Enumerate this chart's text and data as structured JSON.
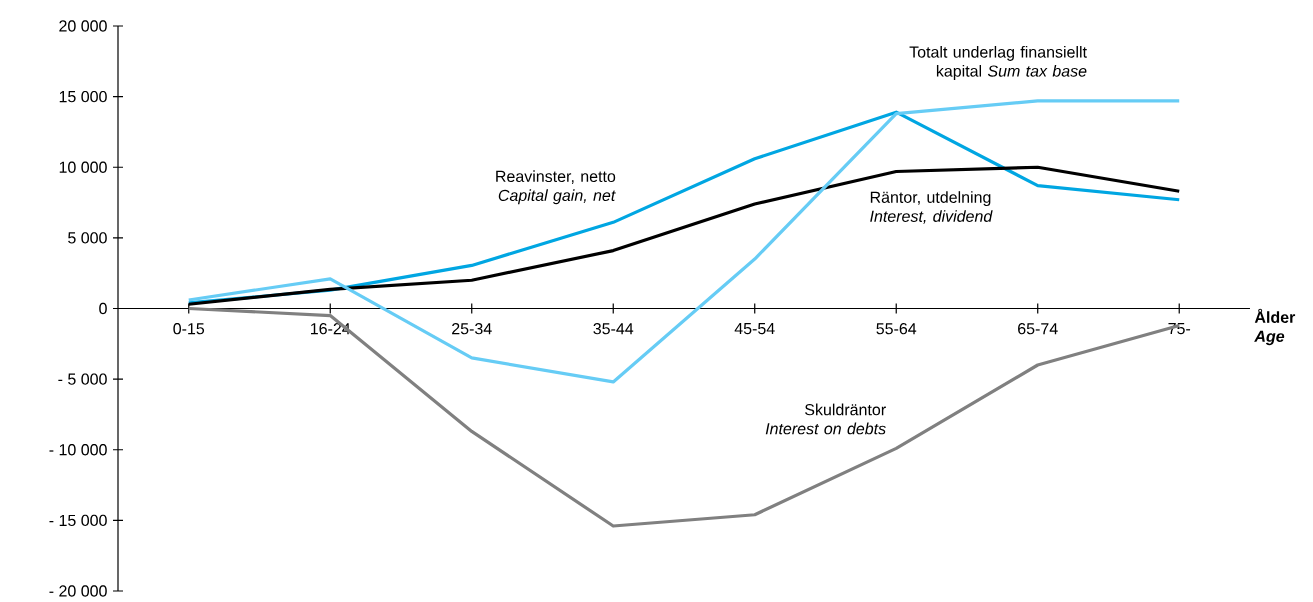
{
  "chart_data": {
    "type": "line",
    "xlabel": "Ålder *Age*",
    "categories": [
      "0-15",
      "16-24",
      "25-34",
      "35-44",
      "45-54",
      "55-64",
      "65-74",
      "75-"
    ],
    "series": [
      {
        "name": "Reavinster, netto *Capital gain, net*",
        "color": "#00a6e2",
        "values": [
          400,
          1300,
          3050,
          6100,
          10600,
          13900,
          8700,
          7700
        ]
      },
      {
        "name": "Räntor, utdelning *Interest, dividend*",
        "color": "#000000",
        "values": [
          300,
          1350,
          2000,
          4100,
          7400,
          9700,
          10000,
          8300
        ]
      },
      {
        "name": "Skuldräntor *Interest on debts*",
        "color": "#808080",
        "values": [
          0,
          -500,
          -8700,
          -15400,
          -14600,
          -9900,
          -4000,
          -1200
        ]
      },
      {
        "name": "Totalt underlag finansiellt kapital *Sum tax base*",
        "color": "#66ccf5",
        "values": [
          600,
          2100,
          -3500,
          -5200,
          3500,
          13800,
          14700,
          14700
        ]
      }
    ],
    "ylim": [
      -20000,
      20000
    ],
    "yticks": [
      {
        "value": -20000,
        "label": "- 20 000"
      },
      {
        "value": -15000,
        "label": "- 15 000"
      },
      {
        "value": -10000,
        "label": "- 10 000"
      },
      {
        "value": -5000,
        "label": "- 5 000"
      },
      {
        "value": 0,
        "label": "0"
      },
      {
        "value": 5000,
        "label": "5 000"
      },
      {
        "value": 10000,
        "label": "10 000"
      },
      {
        "value": 15000,
        "label": "15 000"
      },
      {
        "value": 20000,
        "label": "20 000"
      }
    ],
    "grid": false
  }
}
